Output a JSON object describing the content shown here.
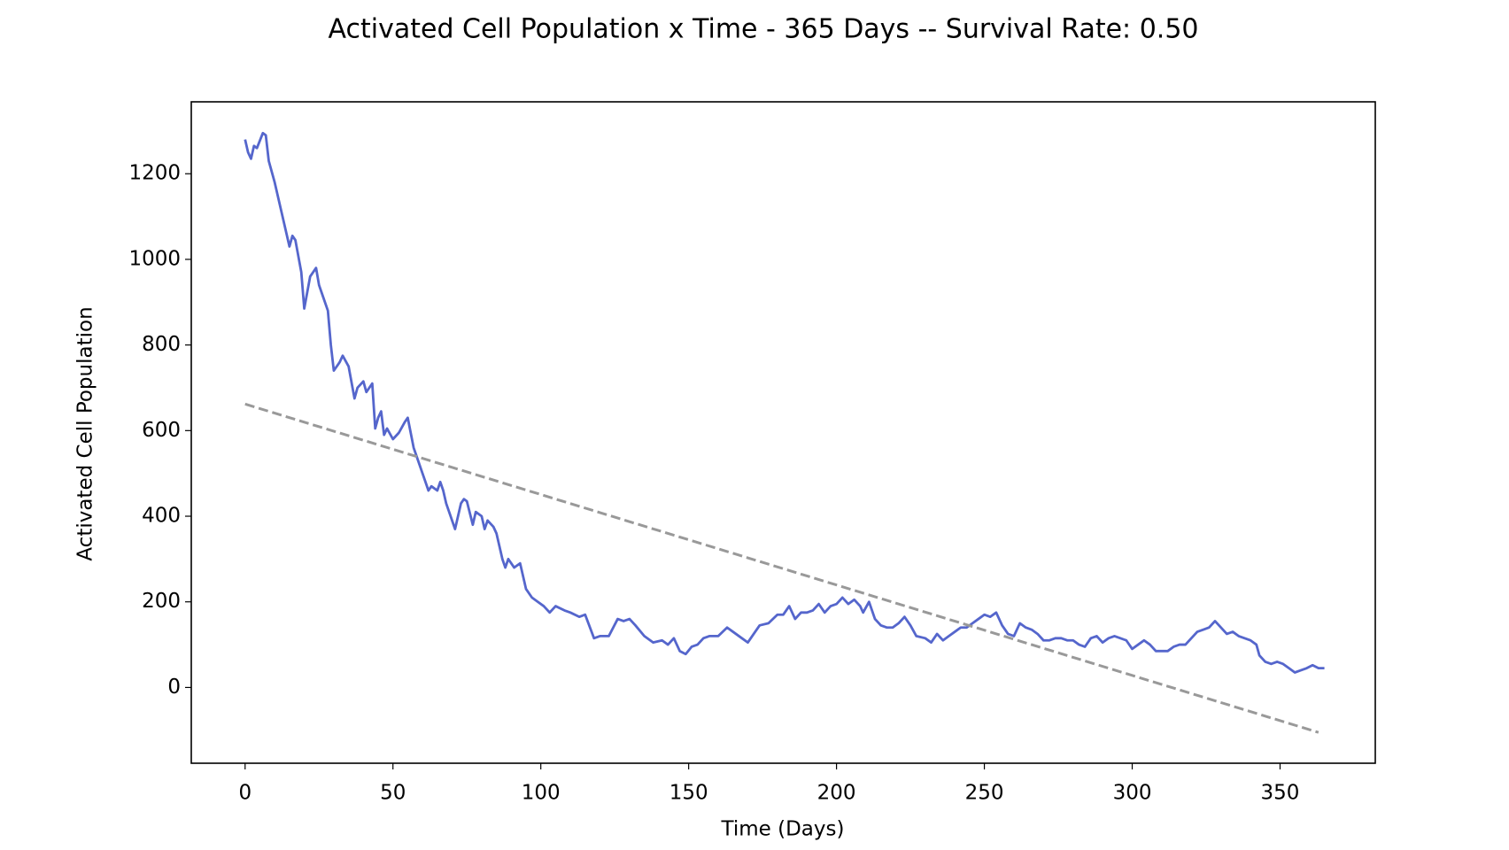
{
  "chart_data": {
    "type": "line",
    "title": "Activated Cell Population x Time - 365 Days -- Survival Rate: 0.50",
    "x_label": "Time (Days)",
    "y_label": "Activated Cell Population",
    "xlim": [
      -18.2,
      382.2
    ],
    "ylim": [
      -177,
      1368
    ],
    "xticks": [
      0,
      50,
      100,
      150,
      200,
      250,
      300,
      350
    ],
    "yticks": [
      0,
      200,
      400,
      600,
      800,
      1000,
      1200
    ],
    "series": [
      {
        "color": "#5566cc",
        "dash": false,
        "x": [
          0,
          1,
          2,
          3,
          4,
          6,
          7,
          8,
          10,
          12,
          14,
          15,
          16,
          17,
          19,
          20,
          22,
          24,
          25,
          26,
          28,
          29,
          30,
          32,
          33,
          35,
          37,
          38,
          40,
          41,
          43,
          44,
          45,
          46,
          47,
          48,
          50,
          52,
          54,
          55,
          57,
          59,
          60,
          62,
          63,
          65,
          66,
          67,
          68,
          70,
          71,
          73,
          74,
          75,
          77,
          78,
          80,
          81,
          82,
          84,
          85,
          87,
          88,
          89,
          91,
          93,
          94,
          95,
          97,
          99,
          101,
          103,
          105,
          108,
          110,
          113,
          115,
          118,
          120,
          123,
          126,
          128,
          130,
          132,
          135,
          138,
          141,
          143,
          145,
          147,
          149,
          151,
          153,
          155,
          157,
          160,
          163,
          165,
          168,
          170,
          172,
          174,
          177,
          180,
          182,
          184,
          186,
          188,
          190,
          192,
          194,
          196,
          198,
          200,
          202,
          204,
          206,
          208,
          209,
          211,
          213,
          215,
          217,
          219,
          221,
          223,
          225,
          227,
          230,
          232,
          234,
          236,
          238,
          240,
          242,
          244,
          246,
          248,
          250,
          252,
          254,
          256,
          258,
          260,
          262,
          264,
          266,
          268,
          270,
          272,
          274,
          276,
          278,
          280,
          282,
          284,
          286,
          288,
          290,
          292,
          294,
          296,
          298,
          300,
          302,
          304,
          306,
          308,
          310,
          312,
          314,
          316,
          318,
          320,
          322,
          324,
          326,
          328,
          330,
          332,
          334,
          336,
          338,
          340,
          342,
          343,
          345,
          347,
          349,
          351,
          353,
          355,
          357,
          359,
          361,
          363,
          365
        ],
        "values": [
          1280,
          1250,
          1235,
          1265,
          1260,
          1295,
          1290,
          1230,
          1180,
          1120,
          1060,
          1030,
          1055,
          1045,
          970,
          885,
          960,
          980,
          940,
          920,
          880,
          800,
          740,
          760,
          775,
          750,
          675,
          700,
          715,
          690,
          710,
          605,
          630,
          645,
          590,
          605,
          580,
          595,
          620,
          630,
          560,
          520,
          500,
          460,
          470,
          460,
          480,
          460,
          430,
          390,
          370,
          430,
          440,
          435,
          380,
          410,
          400,
          370,
          390,
          375,
          360,
          300,
          280,
          300,
          280,
          290,
          260,
          230,
          210,
          200,
          190,
          175,
          190,
          180,
          175,
          165,
          170,
          115,
          120,
          120,
          160,
          155,
          160,
          145,
          120,
          105,
          110,
          100,
          115,
          85,
          78,
          95,
          100,
          115,
          120,
          120,
          140,
          130,
          115,
          105,
          125,
          145,
          150,
          170,
          170,
          190,
          160,
          175,
          175,
          180,
          195,
          175,
          190,
          195,
          210,
          195,
          205,
          190,
          175,
          200,
          160,
          145,
          140,
          140,
          150,
          165,
          145,
          120,
          115,
          105,
          125,
          110,
          120,
          130,
          140,
          140,
          150,
          160,
          170,
          165,
          175,
          145,
          125,
          120,
          150,
          140,
          135,
          125,
          110,
          110,
          115,
          115,
          110,
          110,
          100,
          95,
          115,
          120,
          105,
          115,
          120,
          115,
          110,
          90,
          100,
          110,
          100,
          85,
          85,
          85,
          95,
          100,
          100,
          115,
          130,
          135,
          140,
          155,
          140,
          125,
          130,
          120,
          115,
          110,
          100,
          75,
          60,
          55,
          60,
          55,
          45,
          35,
          40,
          45,
          52,
          45,
          45
        ]
      },
      {
        "color": "#999999",
        "dash": true,
        "x": [
          0,
          363
        ],
        "values": [
          662,
          -105
        ]
      }
    ]
  }
}
